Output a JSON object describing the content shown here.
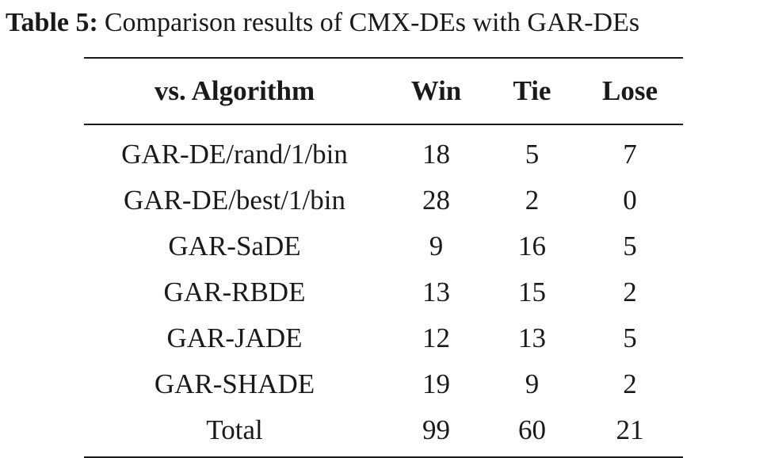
{
  "caption": {
    "label": "Table 5:",
    "text": "Comparison results of CMX-DEs with GAR-DEs"
  },
  "table": {
    "headers": [
      "vs. Algorithm",
      "Win",
      "Tie",
      "Lose"
    ],
    "rows": [
      [
        "GAR-DE/rand/1/bin",
        "18",
        "5",
        "7"
      ],
      [
        "GAR-DE/best/1/bin",
        "28",
        "2",
        "0"
      ],
      [
        "GAR-SaDE",
        "9",
        "16",
        "5"
      ],
      [
        "GAR-RBDE",
        "13",
        "15",
        "2"
      ],
      [
        "GAR-JADE",
        "12",
        "13",
        "5"
      ],
      [
        "GAR-SHADE",
        "19",
        "9",
        "2"
      ],
      [
        "Total",
        "99",
        "60",
        "21"
      ]
    ]
  }
}
